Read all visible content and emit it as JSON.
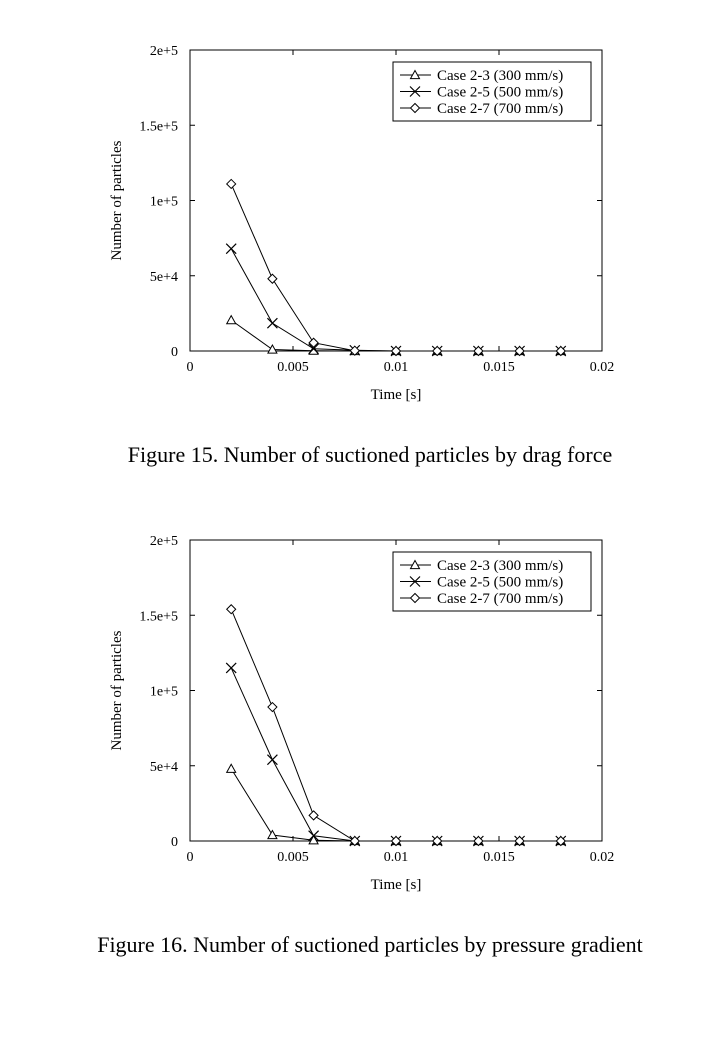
{
  "charts": [
    {
      "caption": "Figure 15. Number of suctioned particles by drag force",
      "chart_data": {
        "type": "line",
        "title": "",
        "xlabel": "Time [s]",
        "ylabel": "Number of particles",
        "xlim": [
          0,
          0.02
        ],
        "ylim": [
          0,
          200000
        ],
        "x_tick_labels": [
          "0",
          "0.005",
          "0.01",
          "0.015",
          "0.02"
        ],
        "y_tick_labels": [
          "0",
          "5e+4",
          "1e+5",
          "1.5e+5",
          "2e+5"
        ],
        "grid": false,
        "legend_position": "top-right",
        "x": [
          0.002,
          0.004,
          0.006,
          0.008,
          0.01,
          0.012,
          0.014,
          0.016,
          0.018
        ],
        "series": [
          {
            "name": "Case 2-3 (300 mm/s)",
            "marker": "triangle",
            "values": [
              20500,
              1000,
              200,
              0,
              0,
              0,
              0,
              0,
              0
            ]
          },
          {
            "name": "Case 2-5 (500 mm/s)",
            "marker": "cross",
            "values": [
              68000,
              18500,
              1500,
              500,
              0,
              0,
              0,
              0,
              0
            ]
          },
          {
            "name": "Case 2-7 (700 mm/s)",
            "marker": "diamond",
            "values": [
              111000,
              48000,
              5500,
              200,
              0,
              0,
              0,
              0,
              0
            ]
          }
        ]
      }
    },
    {
      "caption": "Figure 16. Number of suctioned particles by pressure gradient",
      "chart_data": {
        "type": "line",
        "title": "",
        "xlabel": "Time [s]",
        "ylabel": "Number of particles",
        "xlim": [
          0,
          0.02
        ],
        "ylim": [
          0,
          200000
        ],
        "x_tick_labels": [
          "0",
          "0.005",
          "0.01",
          "0.015",
          "0.02"
        ],
        "y_tick_labels": [
          "0",
          "5e+4",
          "1e+5",
          "1.5e+5",
          "2e+5"
        ],
        "grid": false,
        "legend_position": "top-right",
        "x": [
          0.002,
          0.004,
          0.006,
          0.008,
          0.01,
          0.012,
          0.014,
          0.016,
          0.018
        ],
        "series": [
          {
            "name": "Case 2-3 (300 mm/s)",
            "marker": "triangle",
            "values": [
              48000,
              4000,
              500,
              0,
              0,
              0,
              0,
              0,
              0
            ]
          },
          {
            "name": "Case 2-5 (500 mm/s)",
            "marker": "cross",
            "values": [
              115000,
              54000,
              3500,
              0,
              0,
              0,
              0,
              0,
              0
            ]
          },
          {
            "name": "Case 2-7 (700 mm/s)",
            "marker": "diamond",
            "values": [
              154000,
              89000,
              17000,
              0,
              0,
              0,
              0,
              0,
              0
            ]
          }
        ]
      }
    }
  ]
}
